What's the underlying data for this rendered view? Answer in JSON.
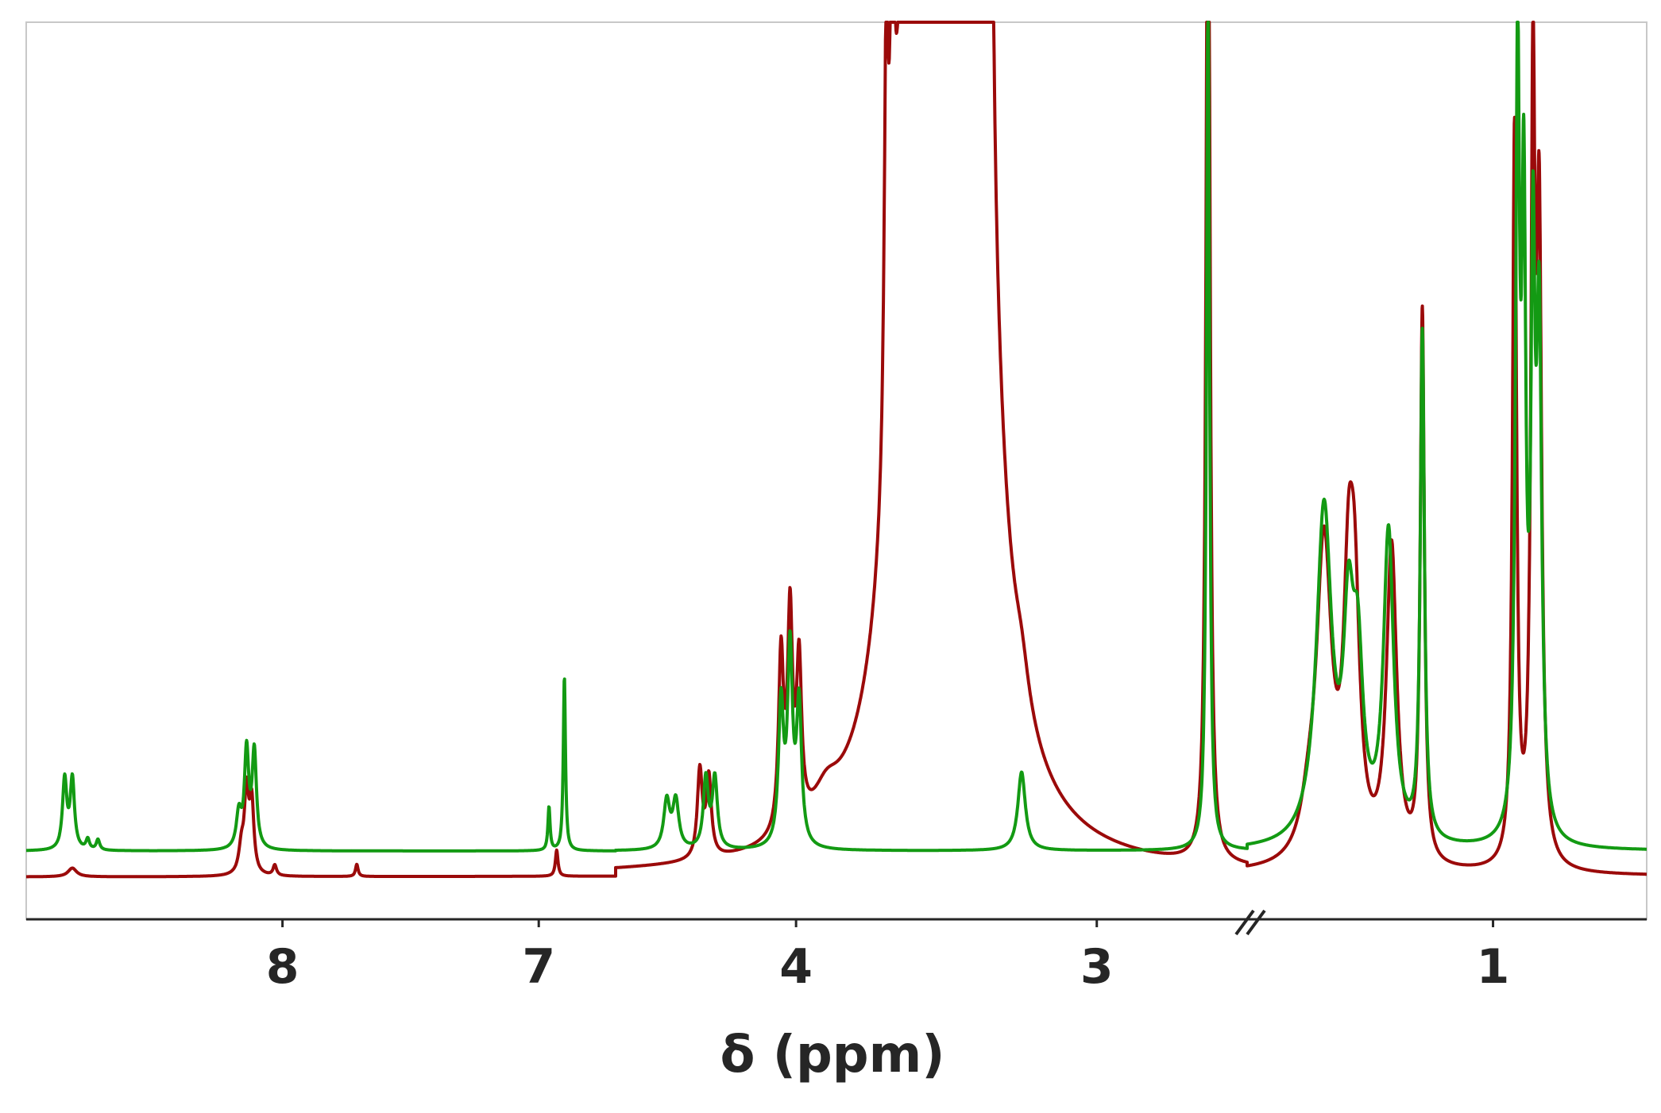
{
  "chart_data": {
    "type": "line",
    "title": "",
    "xlabel": "δ (ppm)",
    "ylabel": "",
    "x_axis": {
      "direction": "decreasing",
      "broken_axis": true,
      "segments": [
        {
          "from": 9.0,
          "to": 6.7
        },
        {
          "from": 4.6,
          "to": 2.5
        },
        {
          "from": 1.8,
          "to": 0.5
        }
      ],
      "tick_labels": [
        "8",
        "7",
        "4",
        "3",
        "1"
      ],
      "tick_values": [
        8,
        7,
        4,
        3,
        1
      ]
    },
    "ylim": [
      0,
      100
    ],
    "grid": false,
    "legend": "none",
    "series": [
      {
        "color": "#9b0a0a",
        "baseline": 3,
        "peaks": [
          {
            "x": 8.82,
            "h": 1.0,
            "w": 0.02
          },
          {
            "x": 8.16,
            "h": 3.0,
            "w": 0.012
          },
          {
            "x": 8.14,
            "h": 9.0,
            "w": 0.01
          },
          {
            "x": 8.12,
            "h": 8.0,
            "w": 0.01
          },
          {
            "x": 8.03,
            "h": 1.2,
            "w": 0.008
          },
          {
            "x": 7.71,
            "h": 1.4,
            "w": 0.006
          },
          {
            "x": 6.93,
            "h": 3.0,
            "w": 0.006
          },
          {
            "x": 4.32,
            "h": 10.0,
            "w": 0.01
          },
          {
            "x": 4.29,
            "h": 9.0,
            "w": 0.01
          },
          {
            "x": 4.05,
            "h": 20.0,
            "w": 0.01
          },
          {
            "x": 4.02,
            "h": 24.0,
            "w": 0.01
          },
          {
            "x": 3.99,
            "h": 18.0,
            "w": 0.01
          },
          {
            "x": 3.9,
            "h": 3.0,
            "w": 0.05
          },
          {
            "x": 3.7,
            "h": 48.0,
            "w": 0.008
          },
          {
            "x": 3.68,
            "h": 48.0,
            "w": 0.008
          },
          {
            "x": 3.59,
            "h": 240.0,
            "w": 0.05
          },
          {
            "x": 3.42,
            "h": 240.0,
            "w": 0.05
          },
          {
            "x": 3.38,
            "h": 30.0,
            "w": 0.008
          },
          {
            "x": 3.35,
            "h": 30.0,
            "w": 0.008
          },
          {
            "x": 3.25,
            "h": 4.0,
            "w": 0.03
          },
          {
            "x": 2.63,
            "h": 140.0,
            "w": 0.007
          },
          {
            "x": 2.31,
            "h": 0.8,
            "w": 0.01
          },
          {
            "x": 1.6,
            "h": 4.0,
            "w": 0.03
          },
          {
            "x": 1.55,
            "h": 36.0,
            "w": 0.03
          },
          {
            "x": 1.47,
            "h": 26.0,
            "w": 0.02
          },
          {
            "x": 1.45,
            "h": 24.0,
            "w": 0.02
          },
          {
            "x": 1.33,
            "h": 36.0,
            "w": 0.02
          },
          {
            "x": 1.23,
            "h": 63.0,
            "w": 0.008
          },
          {
            "x": 0.93,
            "h": 84.0,
            "w": 0.008
          },
          {
            "x": 0.87,
            "h": 84.0,
            "w": 0.008
          },
          {
            "x": 0.85,
            "h": 70.0,
            "w": 0.01
          }
        ]
      },
      {
        "color": "#139a13",
        "baseline": 6,
        "peaks": [
          {
            "x": 8.85,
            "h": 8.0,
            "w": 0.01
          },
          {
            "x": 8.82,
            "h": 8.0,
            "w": 0.01
          },
          {
            "x": 8.76,
            "h": 1.2,
            "w": 0.008
          },
          {
            "x": 8.72,
            "h": 1.2,
            "w": 0.008
          },
          {
            "x": 8.14,
            "h": 11.0,
            "w": 0.01
          },
          {
            "x": 8.11,
            "h": 11.0,
            "w": 0.01
          },
          {
            "x": 8.17,
            "h": 4.0,
            "w": 0.012
          },
          {
            "x": 6.96,
            "h": 5.0,
            "w": 0.005
          },
          {
            "x": 6.9,
            "h": 20.0,
            "w": 0.005
          },
          {
            "x": 4.43,
            "h": 5.5,
            "w": 0.012
          },
          {
            "x": 4.4,
            "h": 5.5,
            "w": 0.012
          },
          {
            "x": 4.3,
            "h": 8.0,
            "w": 0.01
          },
          {
            "x": 4.27,
            "h": 8.0,
            "w": 0.01
          },
          {
            "x": 4.05,
            "h": 16.0,
            "w": 0.01
          },
          {
            "x": 4.02,
            "h": 22.0,
            "w": 0.01
          },
          {
            "x": 3.99,
            "h": 16.0,
            "w": 0.01
          },
          {
            "x": 3.25,
            "h": 9.0,
            "w": 0.015
          },
          {
            "x": 2.63,
            "h": 100.0,
            "w": 0.006
          },
          {
            "x": 1.55,
            "h": 38.0,
            "w": 0.03
          },
          {
            "x": 1.47,
            "h": 22.0,
            "w": 0.02
          },
          {
            "x": 1.44,
            "h": 18.0,
            "w": 0.02
          },
          {
            "x": 1.34,
            "h": 35.0,
            "w": 0.02
          },
          {
            "x": 1.23,
            "h": 58.0,
            "w": 0.008
          },
          {
            "x": 0.92,
            "h": 86.0,
            "w": 0.008
          },
          {
            "x": 0.9,
            "h": 66.0,
            "w": 0.008
          },
          {
            "x": 0.87,
            "h": 60.0,
            "w": 0.008
          },
          {
            "x": 0.85,
            "h": 56.0,
            "w": 0.01
          }
        ]
      }
    ]
  }
}
